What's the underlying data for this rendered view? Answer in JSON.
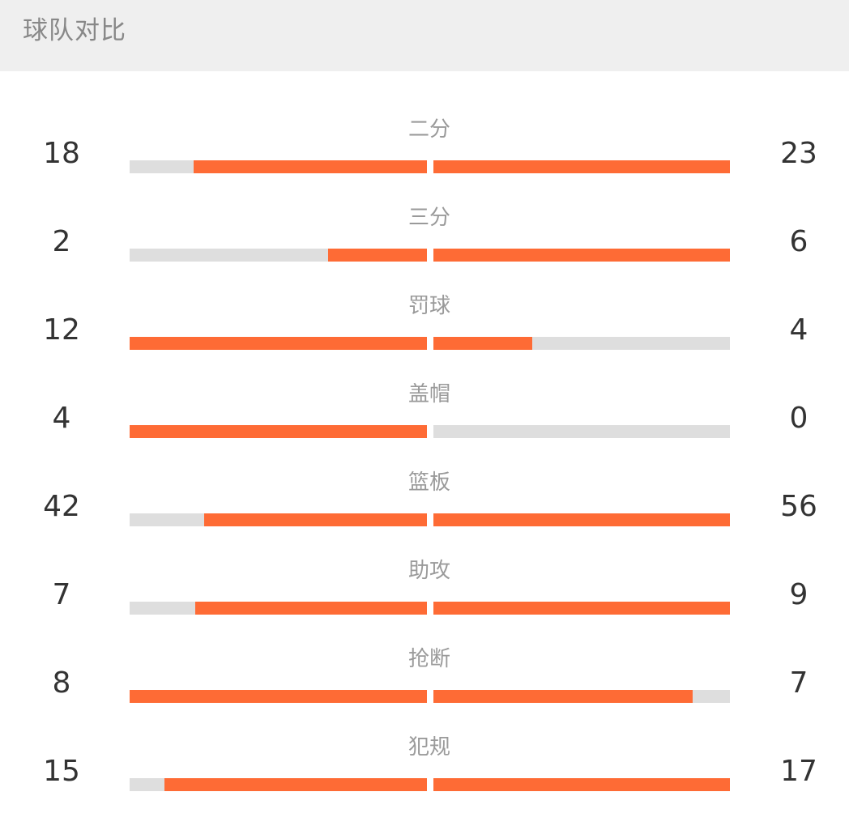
{
  "header": {
    "title": "球队对比"
  },
  "colors": {
    "accent": "#fe6b35",
    "track": "#dedede"
  },
  "stats": [
    {
      "label": "二分",
      "home": "18",
      "away": "23",
      "home_fill": 0.784,
      "away_fill": 1.0
    },
    {
      "label": "三分",
      "home": "2",
      "away": "6",
      "home_fill": 0.333,
      "away_fill": 1.0
    },
    {
      "label": "罚球",
      "home": "12",
      "away": "4",
      "home_fill": 1.0,
      "away_fill": 0.333
    },
    {
      "label": "盖帽",
      "home": "4",
      "away": "0",
      "home_fill": 1.0,
      "away_fill": 0.0
    },
    {
      "label": "篮板",
      "home": "42",
      "away": "56",
      "home_fill": 0.75,
      "away_fill": 1.0
    },
    {
      "label": "助攻",
      "home": "7",
      "away": "9",
      "home_fill": 0.778,
      "away_fill": 1.0
    },
    {
      "label": "抢断",
      "home": "8",
      "away": "7",
      "home_fill": 1.0,
      "away_fill": 0.875
    },
    {
      "label": "犯规",
      "home": "15",
      "away": "17",
      "home_fill": 0.882,
      "away_fill": 1.0
    }
  ]
}
